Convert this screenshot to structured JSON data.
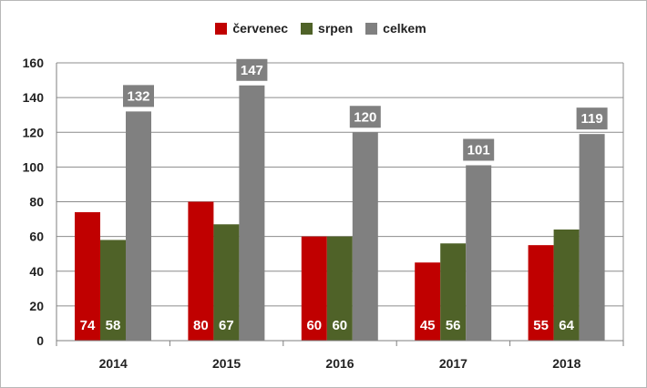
{
  "chart_data": {
    "type": "bar",
    "title": "",
    "xlabel": "",
    "ylabel": "",
    "categories": [
      "2014",
      "2015",
      "2016",
      "2017",
      "2018"
    ],
    "series": [
      {
        "name": "červenec",
        "color": "#c00000",
        "values": [
          74,
          80,
          60,
          45,
          55
        ]
      },
      {
        "name": "srpen",
        "color": "#4f6228",
        "values": [
          58,
          67,
          60,
          56,
          64
        ]
      },
      {
        "name": "celkem",
        "color": "#808080",
        "values": [
          132,
          147,
          120,
          101,
          119
        ]
      }
    ],
    "ylim": [
      0,
      160
    ],
    "yticks": [
      0,
      20,
      40,
      60,
      80,
      100,
      120,
      140,
      160
    ],
    "grid": true,
    "legend_position": "top-center",
    "label_colors": {
      "inside": "#ffffff",
      "callout_bg": "#808080"
    }
  }
}
